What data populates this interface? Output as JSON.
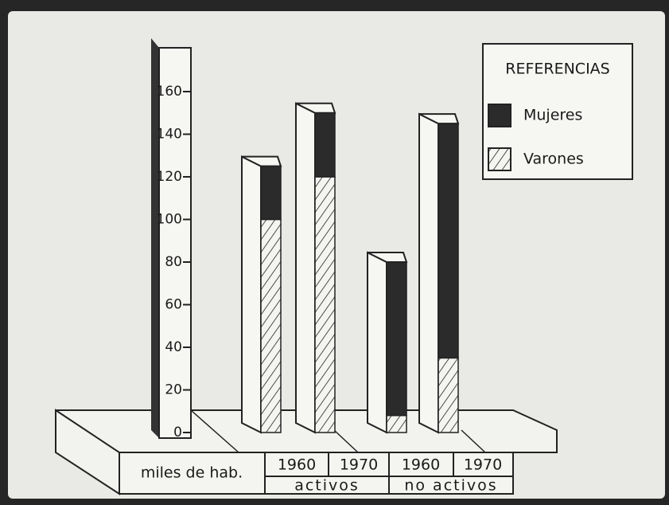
{
  "chart_data": {
    "type": "bar3d",
    "axis_label": "miles de hab.",
    "categories": [
      "1960",
      "1970",
      "1960",
      "1970"
    ],
    "groups": [
      "activos",
      "no activos"
    ],
    "legend_title": "REFERENCIAS",
    "series": [
      {
        "name": "Varones",
        "color": "#f4f4f0",
        "hatch": true,
        "values": [
          100,
          120,
          8,
          35
        ]
      },
      {
        "name": "Mujeres",
        "color": "#2b2b2b",
        "hatch": false,
        "values": [
          25,
          30,
          72,
          110
        ]
      }
    ],
    "ylim": [
      0,
      160
    ],
    "yticks": [
      0,
      20,
      40,
      60,
      80,
      100,
      120,
      140,
      160
    ]
  }
}
